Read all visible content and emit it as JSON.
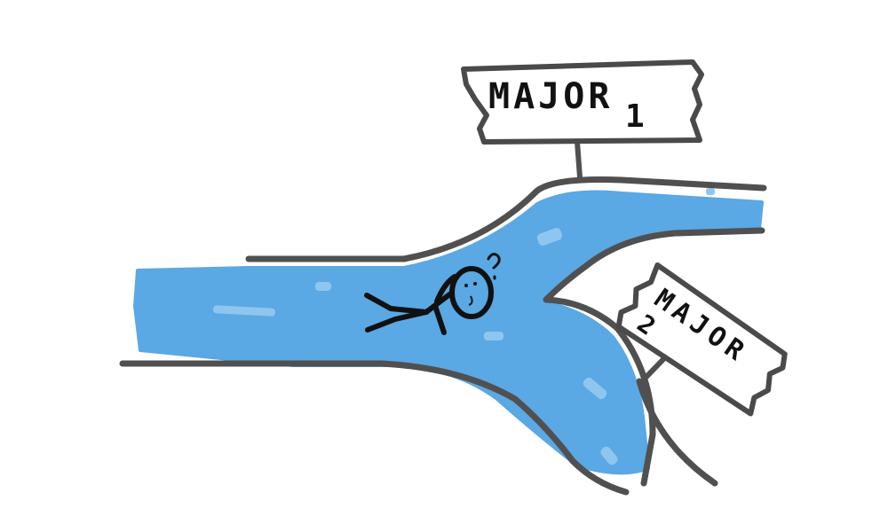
{
  "signs": {
    "major1": {
      "word": "MAJOR",
      "number": "1"
    },
    "major2": {
      "word": "MAJOR",
      "number": "2"
    }
  },
  "colors": {
    "river": "#5aa8e4",
    "river_highlight": "#8fc6ef",
    "bank": "#505050",
    "ink": "#111111"
  }
}
